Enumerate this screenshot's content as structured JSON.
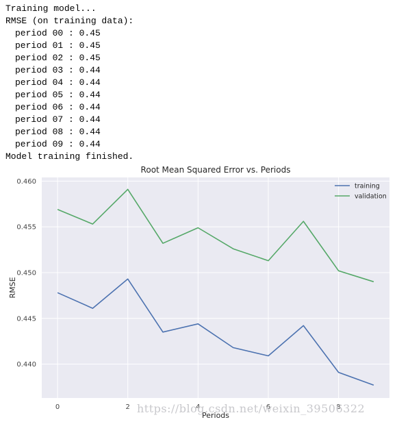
{
  "console": {
    "header_lines": [
      "Training model...",
      "RMSE (on training data):"
    ],
    "periods": [
      {
        "label": "period 00",
        "value": "0.45"
      },
      {
        "label": "period 01",
        "value": "0.45"
      },
      {
        "label": "period 02",
        "value": "0.45"
      },
      {
        "label": "period 03",
        "value": "0.44"
      },
      {
        "label": "period 04",
        "value": "0.44"
      },
      {
        "label": "period 05",
        "value": "0.44"
      },
      {
        "label": "period 06",
        "value": "0.44"
      },
      {
        "label": "period 07",
        "value": "0.44"
      },
      {
        "label": "period 08",
        "value": "0.44"
      },
      {
        "label": "period 09",
        "value": "0.44"
      }
    ],
    "footer_line": "Model training finished."
  },
  "chart_data": {
    "type": "line",
    "title": "Root Mean Squared Error vs. Periods",
    "xlabel": "Periods",
    "ylabel": "RMSE",
    "x": [
      0,
      1,
      2,
      3,
      4,
      5,
      6,
      7,
      8,
      9
    ],
    "series": [
      {
        "name": "training",
        "color": "#4c72b0",
        "values": [
          0.4478,
          0.4461,
          0.4493,
          0.4435,
          0.4444,
          0.4418,
          0.4409,
          0.4442,
          0.4391,
          0.4377
        ]
      },
      {
        "name": "validation",
        "color": "#55a868",
        "values": [
          0.4569,
          0.4553,
          0.4591,
          0.4532,
          0.4549,
          0.4526,
          0.4513,
          0.4556,
          0.4502,
          0.449
        ]
      }
    ],
    "xticks": [
      0,
      2,
      4,
      6,
      8
    ],
    "yticks": [
      0.44,
      0.445,
      0.45,
      0.455,
      0.46
    ],
    "ytick_labels": [
      "0.440",
      "0.445",
      "0.450",
      "0.455",
      "0.460"
    ],
    "xlim": [
      -0.45,
      9.45
    ],
    "ylim": [
      0.4363,
      0.4604
    ],
    "grid": true,
    "legend_position": "top-right",
    "background_color": "#eaeaf2",
    "grid_color": "#ffffff"
  },
  "watermark": "https://blog.csdn.net/weixin_39506322"
}
